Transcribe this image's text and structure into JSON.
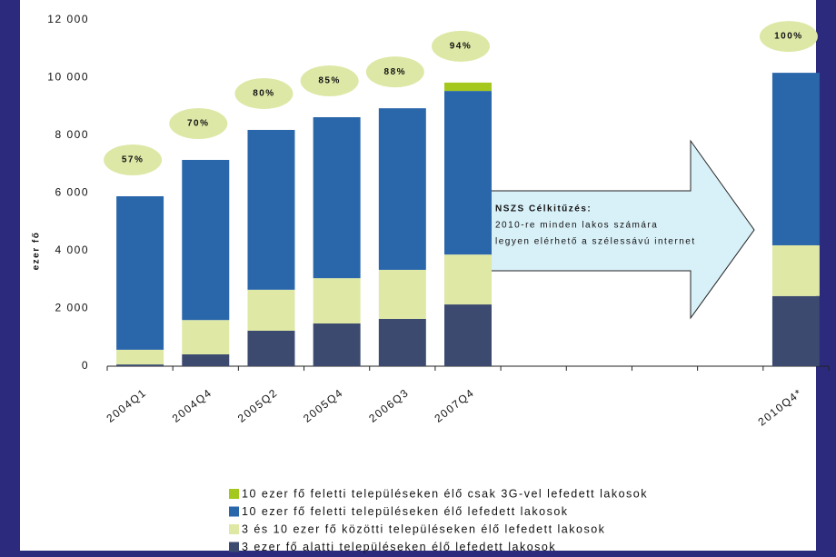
{
  "chart_data": {
    "type": "stacked_bar",
    "y_label": "ezer fő",
    "categories": [
      "2004Q1",
      "2004Q4",
      "2005Q2",
      "2005Q4",
      "2006Q3",
      "2007Q4",
      null,
      null,
      null,
      null,
      "2010Q4*"
    ],
    "series": [
      {
        "name": "10 ezer fő feletti településeken élő csak 3G-vel lefedett lakosok",
        "color": "#a4c81e",
        "values": [
          0,
          0,
          0,
          0,
          0,
          290,
          null,
          null,
          null,
          null,
          0
        ]
      },
      {
        "name": "10 ezer fő feletti településeken élő lefedett lakosok",
        "color": "#2a66aa",
        "values": [
          5320,
          5550,
          5540,
          5580,
          5600,
          5670,
          null,
          null,
          null,
          null,
          5980
        ]
      },
      {
        "name": "3 és 10 ezer fő közötti településeken élő lefedett lakosok",
        "color": "#dfe8a4",
        "values": [
          510,
          1190,
          1420,
          1570,
          1700,
          1730,
          null,
          null,
          null,
          null,
          1760
        ]
      },
      {
        "name": "3 ezer fő alatti településeken élő lefedett lakosok",
        "color": "#3b4a6e",
        "values": [
          60,
          410,
          1230,
          1480,
          1640,
          2140,
          null,
          null,
          null,
          null,
          2430
        ]
      }
    ],
    "percent_labels": [
      "57%",
      "70%",
      "80%",
      "85%",
      "88%",
      "94%",
      null,
      null,
      null,
      null,
      "100%"
    ],
    "callout": {
      "title": "NSZS Célkitűzés:",
      "lines": [
        "2010-re minden lakos számára",
        "legyen elérhető a szélessávú internet"
      ]
    },
    "ylim": [
      0,
      12000
    ],
    "yticks": [
      0,
      {
        "value": 2000,
        "label": "2 000"
      },
      {
        "value": 4000,
        "label": "4 000"
      },
      {
        "value": 6000,
        "label": "6 000"
      },
      {
        "value": 8000,
        "label": "8 000"
      },
      {
        "value": 10000,
        "label": "10 000"
      },
      {
        "value": 12000,
        "label": "12 000"
      }
    ],
    "grid": false
  }
}
